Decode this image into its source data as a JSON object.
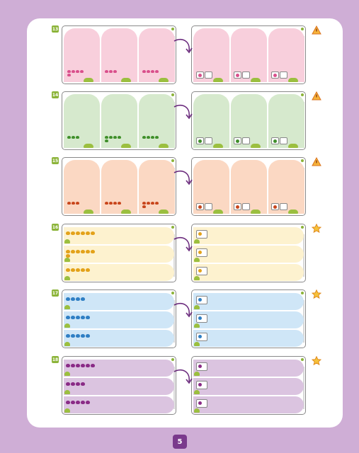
{
  "page": {
    "number": "5"
  },
  "colors": {
    "background": "#cfaed6",
    "pink": "#f8cfdc",
    "green": "#d6e9cd",
    "orange": "#fbd8c3",
    "yellow": "#fdf2cf",
    "blue": "#cfe6f7",
    "purple": "#dbc4e0",
    "badge": "#8cb43a"
  },
  "exercises": [
    {
      "number": "13",
      "layout": "columns",
      "color": "pink",
      "counts": [
        5,
        3,
        4
      ],
      "icon_color": "#d94f8c",
      "side_icon": "warning-triangle-icon"
    },
    {
      "number": "14",
      "layout": "columns",
      "color": "green",
      "counts": [
        3,
        5,
        4
      ],
      "icon_color": "#3f8f2a",
      "side_icon": "warning-triangle-icon"
    },
    {
      "number": "15",
      "layout": "columns",
      "color": "orange",
      "counts": [
        3,
        4,
        5
      ],
      "icon_color": "#c8461c",
      "side_icon": "warning-triangle-icon"
    },
    {
      "number": "16",
      "layout": "rows",
      "color": "yellow",
      "counts": [
        6,
        7,
        5
      ],
      "icon_color": "#e3a21a",
      "side_icon": "star-icon"
    },
    {
      "number": "17",
      "layout": "rows",
      "color": "blue",
      "counts": [
        4,
        5,
        5
      ],
      "icon_color": "#2f7fc4",
      "side_icon": "star-icon"
    },
    {
      "number": "18",
      "layout": "rows",
      "color": "purple",
      "counts": [
        6,
        4,
        5
      ],
      "icon_color": "#8a2b86",
      "side_icon": "star-icon"
    }
  ]
}
